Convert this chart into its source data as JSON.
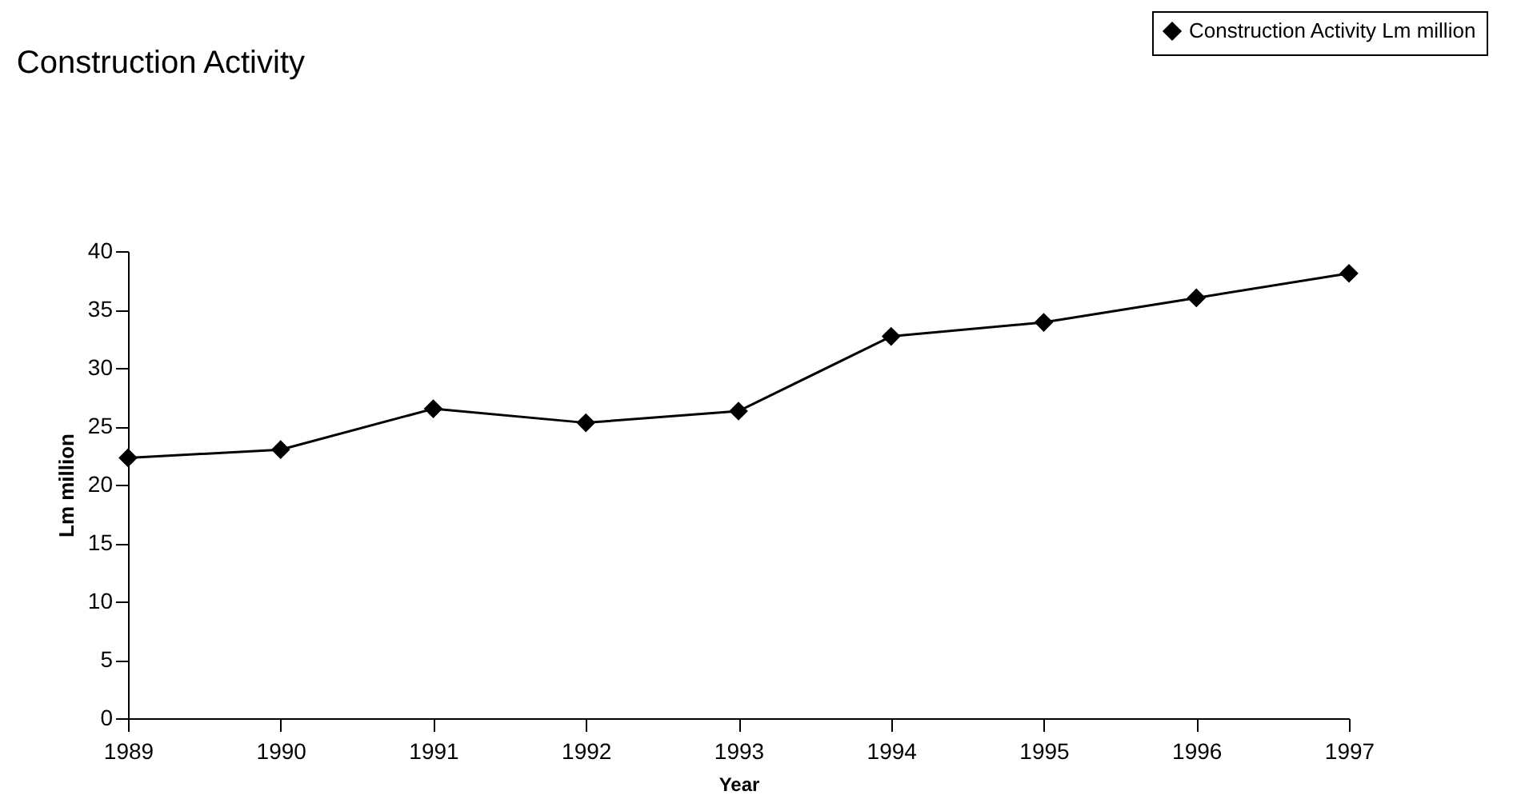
{
  "chart_data": {
    "type": "line",
    "title": "Construction Activity",
    "xlabel": "Year",
    "ylabel": "Lm million",
    "categories": [
      "1989",
      "1990",
      "1991",
      "1992",
      "1993",
      "1994",
      "1995",
      "1996",
      "1997"
    ],
    "series": [
      {
        "name": "Construction Activity Lm million",
        "color": "#000000",
        "values": [
          22.3,
          23.0,
          26.5,
          25.3,
          26.3,
          32.7,
          33.9,
          36.0,
          38.1
        ]
      }
    ],
    "ylim": [
      0,
      40
    ],
    "yticks": [
      0,
      5,
      10,
      15,
      20,
      25,
      30,
      35,
      40
    ],
    "grid": false,
    "legend": "top right",
    "marker": "diamond",
    "line_style": "solid"
  }
}
